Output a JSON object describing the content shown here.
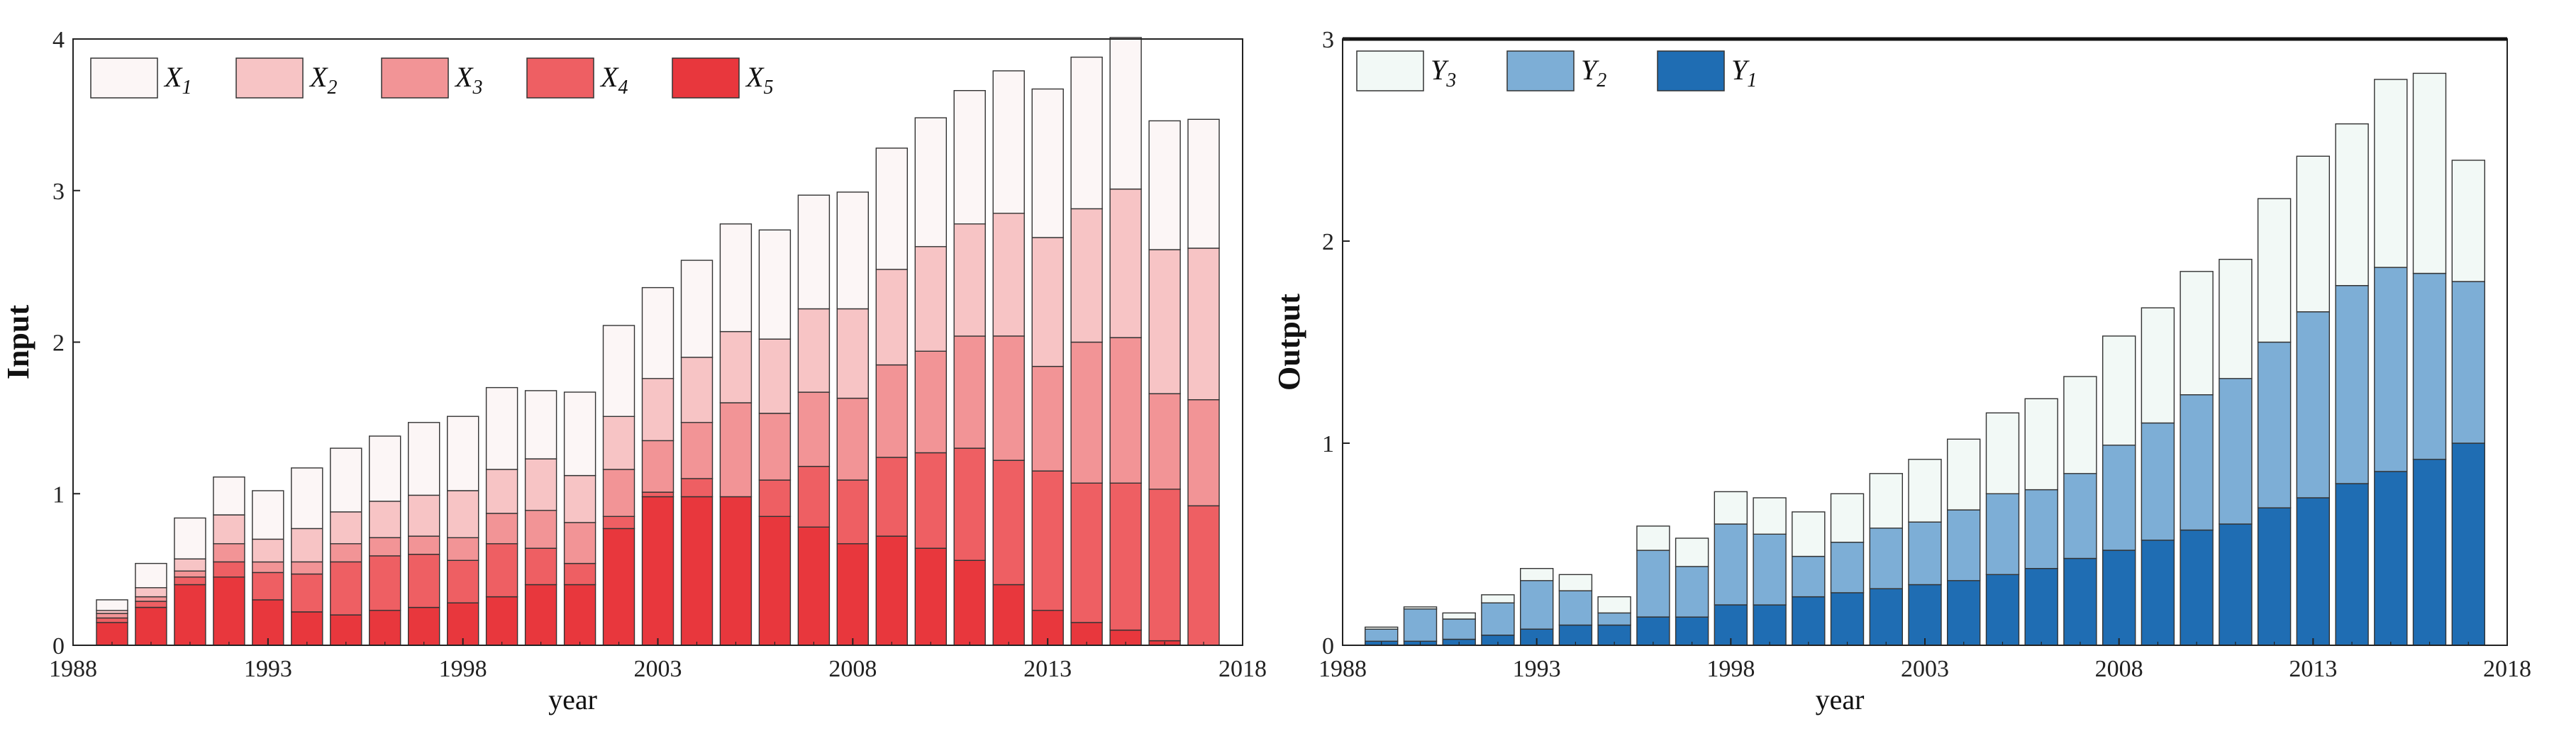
{
  "chart_data": [
    {
      "type": "bar",
      "stacked": true,
      "title": "",
      "xlabel": "year",
      "ylabel": "Input",
      "xlim": [
        1988,
        2018
      ],
      "ylim": [
        0,
        4
      ],
      "xticks": [
        1988,
        1993,
        1998,
        2003,
        2008,
        2013,
        2018
      ],
      "yticks": [
        0,
        1,
        2,
        3,
        4
      ],
      "grid": false,
      "legend_position": "top-left",
      "years": [
        1989,
        1990,
        1991,
        1992,
        1993,
        1994,
        1995,
        1996,
        1997,
        1998,
        1999,
        2000,
        2001,
        2002,
        2003,
        2004,
        2005,
        2006,
        2007,
        2008,
        2009,
        2010,
        2011,
        2012,
        2013,
        2014,
        2015,
        2016,
        2017
      ],
      "series": [
        {
          "name": "X5",
          "base": "X",
          "sub": "5",
          "color": "#e8373d",
          "values": [
            0.15,
            0.25,
            0.4,
            0.45,
            0.3,
            0.22,
            0.2,
            0.23,
            0.25,
            0.28,
            0.32,
            0.4,
            0.4,
            0.77,
            0.98,
            0.98,
            0.98,
            0.85,
            0.78,
            0.67,
            0.72,
            0.64,
            0.56,
            0.4,
            0.23,
            0.15,
            0.1,
            0.03,
            0.0
          ]
        },
        {
          "name": "X4",
          "base": "X",
          "sub": "4",
          "color": "#ee5f63",
          "values": [
            0.03,
            0.04,
            0.05,
            0.1,
            0.18,
            0.25,
            0.35,
            0.36,
            0.35,
            0.28,
            0.35,
            0.24,
            0.14,
            0.08,
            0.03,
            0.12,
            0.0,
            0.24,
            0.4,
            0.42,
            0.52,
            0.63,
            0.74,
            0.82,
            0.92,
            0.92,
            0.97,
            1.0,
            0.92
          ]
        },
        {
          "name": "X3",
          "base": "X",
          "sub": "3",
          "color": "#f29496",
          "values": [
            0.03,
            0.03,
            0.04,
            0.12,
            0.07,
            0.08,
            0.12,
            0.12,
            0.12,
            0.15,
            0.2,
            0.25,
            0.27,
            0.31,
            0.34,
            0.37,
            0.62,
            0.44,
            0.49,
            0.54,
            0.61,
            0.67,
            0.74,
            0.82,
            0.69,
            0.93,
            0.96,
            0.63,
            0.7
          ]
        },
        {
          "name": "X2",
          "base": "X",
          "sub": "2",
          "color": "#f7c4c5",
          "values": [
            0.02,
            0.06,
            0.08,
            0.19,
            0.15,
            0.22,
            0.21,
            0.24,
            0.27,
            0.31,
            0.29,
            0.34,
            0.31,
            0.35,
            0.41,
            0.43,
            0.47,
            0.49,
            0.55,
            0.59,
            0.63,
            0.69,
            0.74,
            0.81,
            0.85,
            0.88,
            0.98,
            0.95,
            1.0
          ]
        },
        {
          "name": "X1",
          "base": "X",
          "sub": "1",
          "color": "#fcf6f6",
          "values": [
            0.07,
            0.16,
            0.27,
            0.25,
            0.32,
            0.4,
            0.42,
            0.43,
            0.48,
            0.49,
            0.54,
            0.45,
            0.55,
            0.6,
            0.6,
            0.64,
            0.71,
            0.72,
            0.75,
            0.77,
            0.8,
            0.85,
            0.88,
            0.94,
            0.98,
            1.0,
            1.0,
            0.85,
            0.85
          ]
        }
      ],
      "legend_order": [
        "X1",
        "X2",
        "X3",
        "X4",
        "X5"
      ]
    },
    {
      "type": "bar",
      "stacked": true,
      "title": "",
      "xlabel": "year",
      "ylabel": "Output",
      "xlim": [
        1988,
        2018
      ],
      "ylim": [
        0,
        3
      ],
      "xticks": [
        1988,
        1993,
        1998,
        2003,
        2008,
        2013,
        2018
      ],
      "yticks": [
        0,
        1,
        2,
        3
      ],
      "grid": false,
      "legend_position": "top-left",
      "years": [
        1989,
        1990,
        1991,
        1992,
        1993,
        1994,
        1995,
        1996,
        1997,
        1998,
        1999,
        2000,
        2001,
        2002,
        2003,
        2004,
        2005,
        2006,
        2007,
        2008,
        2009,
        2010,
        2011,
        2012,
        2013,
        2014,
        2015,
        2016,
        2017
      ],
      "series": [
        {
          "name": "Y1",
          "base": "Y",
          "sub": "1",
          "color": "#1f6db3",
          "values": [
            0.02,
            0.02,
            0.03,
            0.05,
            0.08,
            0.1,
            0.1,
            0.14,
            0.14,
            0.2,
            0.2,
            0.24,
            0.26,
            0.28,
            0.3,
            0.32,
            0.35,
            0.38,
            0.43,
            0.47,
            0.52,
            0.57,
            0.6,
            0.68,
            0.73,
            0.8,
            0.86,
            0.92,
            1.0
          ]
        },
        {
          "name": "Y2",
          "base": "Y",
          "sub": "2",
          "color": "#7daed6",
          "values": [
            0.06,
            0.16,
            0.1,
            0.16,
            0.24,
            0.17,
            0.06,
            0.33,
            0.25,
            0.4,
            0.35,
            0.2,
            0.25,
            0.3,
            0.31,
            0.35,
            0.4,
            0.39,
            0.42,
            0.52,
            0.58,
            0.67,
            0.72,
            0.82,
            0.92,
            0.98,
            1.01,
            0.92,
            0.8
          ]
        },
        {
          "name": "Y3",
          "base": "Y",
          "sub": "3",
          "color": "#f2f9f6",
          "values": [
            0.01,
            0.01,
            0.03,
            0.04,
            0.06,
            0.08,
            0.08,
            0.12,
            0.14,
            0.16,
            0.18,
            0.22,
            0.24,
            0.27,
            0.31,
            0.35,
            0.4,
            0.45,
            0.48,
            0.54,
            0.57,
            0.61,
            0.59,
            0.71,
            0.77,
            0.8,
            0.93,
            0.99,
            0.6
          ]
        }
      ],
      "legend_order": [
        "Y3",
        "Y2",
        "Y1"
      ]
    }
  ]
}
